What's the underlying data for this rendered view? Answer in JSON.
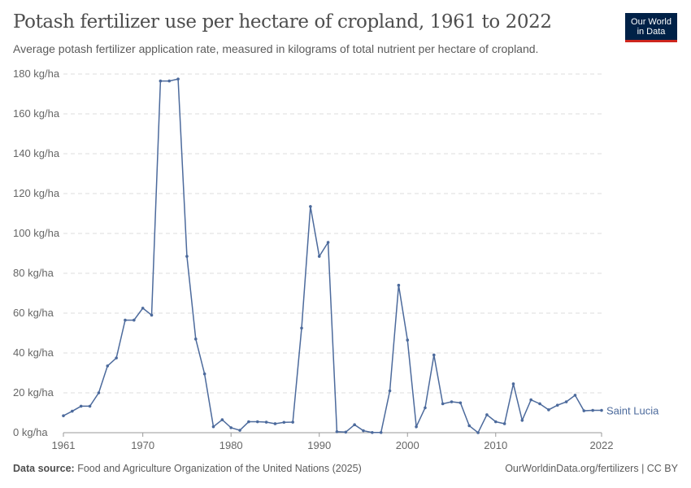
{
  "title": "Potash fertilizer use per hectare of cropland, 1961 to 2022",
  "subtitle": "Average potash fertilizer application rate, measured in kilograms of total nutrient per hectare of cropland.",
  "logo": {
    "line1": "Our World",
    "line2": "in Data"
  },
  "footer": {
    "source_label": "Data source:",
    "source": "Food and Agriculture Organization of the United Nations (2025)",
    "link": "OurWorldinData.org/fertilizers | CC BY"
  },
  "colors": {
    "series": "#4c6a9c",
    "grid": "#dddddd"
  },
  "chart_data": {
    "type": "line",
    "xlim": [
      1961,
      2022
    ],
    "ylim": [
      0,
      180
    ],
    "grid": true,
    "x_ticks": [
      "1961",
      "1970",
      "1980",
      "1990",
      "2000",
      "2010",
      "2022"
    ],
    "y_ticks": [
      "0 kg/ha",
      "20 kg/ha",
      "40 kg/ha",
      "60 kg/ha",
      "80 kg/ha",
      "100 kg/ha",
      "120 kg/ha",
      "140 kg/ha",
      "160 kg/ha",
      "180 kg/ha"
    ],
    "series": [
      {
        "name": "Saint Lucia",
        "x": [
          1961,
          1962,
          1963,
          1964,
          1965,
          1966,
          1967,
          1968,
          1969,
          1970,
          1971,
          1972,
          1973,
          1974,
          1975,
          1976,
          1977,
          1978,
          1979,
          1980,
          1981,
          1982,
          1983,
          1984,
          1985,
          1986,
          1987,
          1988,
          1989,
          1990,
          1991,
          1992,
          1993,
          1994,
          1995,
          1996,
          1997,
          1998,
          1999,
          2000,
          2001,
          2002,
          2003,
          2004,
          2005,
          2006,
          2007,
          2008,
          2009,
          2010,
          2011,
          2012,
          2013,
          2014,
          2015,
          2016,
          2017,
          2018,
          2019,
          2020,
          2021,
          2022
        ],
        "values": [
          8.5,
          10.8,
          13.3,
          13.3,
          20,
          33.5,
          37.5,
          56.5,
          56.5,
          62.5,
          59,
          176.5,
          176.5,
          177.5,
          88.5,
          47,
          29.5,
          3,
          6.5,
          2.5,
          1.2,
          5.5,
          5.5,
          5.3,
          4.5,
          5.2,
          5.3,
          52.5,
          113.5,
          88.5,
          95.5,
          0.5,
          0.3,
          4,
          1,
          0.1,
          0.1,
          21,
          74,
          46.5,
          3,
          12.5,
          39,
          14.5,
          15.5,
          15,
          3.5,
          0,
          9,
          5.5,
          4.5,
          24.5,
          6.2,
          16.5,
          14.5,
          11.5,
          13.8,
          15.5,
          18.8,
          11,
          11.2,
          11.2
        ]
      }
    ]
  }
}
